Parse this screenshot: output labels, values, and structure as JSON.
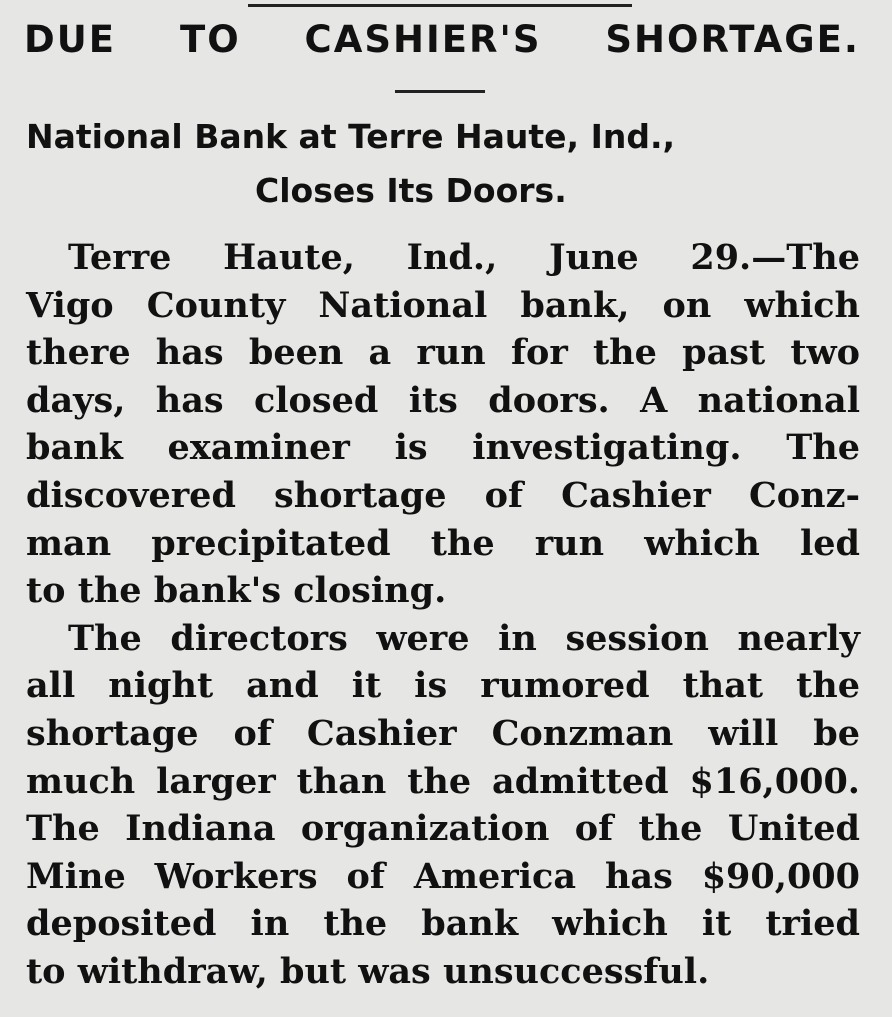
{
  "headline": "DUE TO CASHIER'S SHORTAGE.",
  "subheadline": [
    "National Bank at Terre Haute, Ind.,",
    "Closes Its Doors."
  ],
  "paragraphs": [
    [
      "Terre Haute, Ind., June 29.—The",
      "Vigo County National bank, on which",
      "there has been a run for the past two",
      "days, has closed its doors. A national",
      "bank examiner is investigating. The",
      "discovered shortage of Cashier Conz-",
      "man precipitated the run which led",
      "to the bank's closing."
    ],
    [
      "The directors were in session nearly",
      "all night and it is rumored that the",
      "shortage of Cashier Conzman will be",
      "much larger than the admitted $16,000.",
      "The Indiana organization of the United",
      "Mine Workers of America has $90,000",
      "deposited in the bank which it tried",
      "to withdraw, but was unsuccessful."
    ]
  ]
}
